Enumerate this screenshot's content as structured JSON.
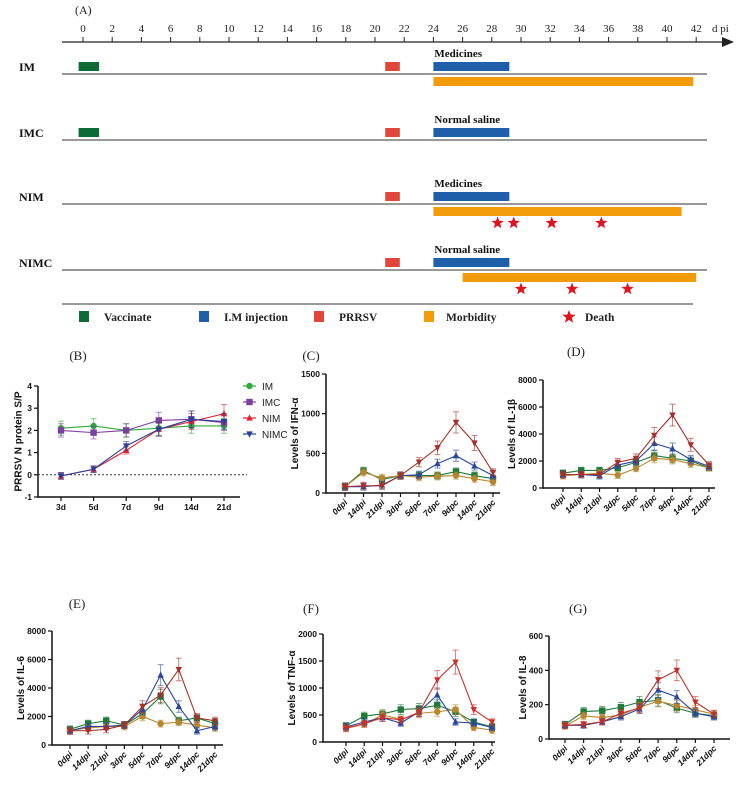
{
  "panel_a": {
    "label": "(A)",
    "axis_unit": "d pi",
    "ticks": [
      0,
      2,
      4,
      6,
      8,
      10,
      12,
      14,
      16,
      18,
      20,
      22,
      24,
      26,
      28,
      30,
      32,
      34,
      36,
      38,
      40,
      42
    ],
    "colors": {
      "vaccinate": "#0d6b35",
      "injection": "#1f5ea8",
      "prrsv": "#e2463a",
      "morbidity": "#f29c0c",
      "death": "#e0131f"
    },
    "rows": [
      {
        "name": "IM",
        "treatment": "Medicines",
        "vaccinate": [
          -0.3,
          1.1
        ],
        "prrsv": [
          20.7,
          21.7
        ],
        "injection": [
          24,
          29.2
        ],
        "morbidity": [
          24,
          41.8
        ],
        "deaths": []
      },
      {
        "name": "IMC",
        "treatment": "Normal saline",
        "vaccinate": [
          -0.3,
          1.1
        ],
        "prrsv": [
          20.7,
          21.7
        ],
        "injection": [
          24,
          29.2
        ],
        "morbidity": null,
        "deaths": []
      },
      {
        "name": "NIM",
        "treatment": "Medicines",
        "vaccinate": null,
        "prrsv": [
          20.7,
          21.7
        ],
        "injection": [
          24,
          29.2
        ],
        "morbidity": [
          24,
          41
        ],
        "deaths": [
          28.4,
          29.5,
          32.1,
          35.5
        ]
      },
      {
        "name": "NIMC",
        "treatment": "Normal saline",
        "vaccinate": null,
        "prrsv": [
          20.7,
          21.7
        ],
        "injection": [
          24,
          29.2
        ],
        "morbidity": [
          26,
          42
        ],
        "deaths": [
          30,
          33.5,
          37.3
        ]
      }
    ],
    "legend": [
      {
        "key": "vaccinate",
        "label": "Vaccinate"
      },
      {
        "key": "injection",
        "label": "I.M injection"
      },
      {
        "key": "prrsv",
        "label": "PRRSV"
      },
      {
        "key": "morbidity",
        "label": "Morbidity"
      },
      {
        "key": "death",
        "label": "Death"
      }
    ]
  },
  "chart_data": [
    {
      "id": "B",
      "panel_label": "(B)",
      "type": "line",
      "ylabel": "PRRSV N protein S/P",
      "xlabel": "",
      "categories": [
        "3d",
        "5d",
        "7d",
        "9d",
        "14d",
        "21d"
      ],
      "ylim": [
        -1,
        4
      ],
      "yticks": [
        -1,
        0,
        1,
        2,
        3,
        4
      ],
      "reference_line": 0,
      "legend": "right",
      "series": [
        {
          "name": "IM",
          "color": "#2eab3c",
          "marker": "circle",
          "values": [
            2.1,
            2.2,
            2.0,
            2.1,
            2.2,
            2.2
          ]
        },
        {
          "name": "IMC",
          "color": "#7b3fa0",
          "marker": "square",
          "values": [
            2.0,
            1.9,
            2.0,
            2.45,
            2.5,
            2.35
          ]
        },
        {
          "name": "NIM",
          "color": "#e0202a",
          "marker": "triangle-up",
          "values": [
            -0.05,
            0.25,
            1.1,
            2.05,
            2.4,
            2.75
          ]
        },
        {
          "name": "NIMC",
          "color": "#2a3f9a",
          "marker": "triangle-down",
          "values": [
            -0.05,
            0.25,
            1.3,
            2.05,
            2.5,
            2.4
          ]
        }
      ]
    },
    {
      "id": "C",
      "panel_label": "(C)",
      "type": "line",
      "ylabel": "Levels of IFN-α",
      "xlabel": "",
      "categories": [
        "0dpi",
        "14dpi",
        "21dpi",
        "3dpc",
        "5dpc",
        "7dpc",
        "9dpc",
        "14dpc",
        "21dpc"
      ],
      "ylim": [
        0,
        1500
      ],
      "yticks": [
        0,
        500,
        1000,
        1500
      ],
      "series": [
        {
          "name": "green",
          "color": "#1f7a3a",
          "marker": "square",
          "values": [
            80,
            280,
            170,
            220,
            220,
            220,
            270,
            220,
            180
          ]
        },
        {
          "name": "brown",
          "color": "#b8862f",
          "marker": "circle",
          "values": [
            80,
            260,
            190,
            220,
            200,
            210,
            220,
            180,
            140
          ]
        },
        {
          "name": "blue",
          "color": "#2a47a0",
          "marker": "triangle-up",
          "values": [
            80,
            80,
            100,
            220,
            230,
            370,
            470,
            340,
            220
          ]
        },
        {
          "name": "red",
          "color": "#a8302a",
          "marker": "triangle-down",
          "values": [
            80,
            90,
            90,
            220,
            390,
            570,
            890,
            630,
            260
          ]
        }
      ]
    },
    {
      "id": "D",
      "panel_label": "(D)",
      "type": "line",
      "ylabel": "Levels of IL-1β",
      "xlabel": "",
      "categories": [
        "0dpi",
        "14dpi",
        "21dpi",
        "3dpc",
        "5dpc",
        "7dpc",
        "9dpc",
        "14dpc",
        "21dpc"
      ],
      "ylim": [
        0,
        8000
      ],
      "yticks": [
        0,
        2000,
        4000,
        6000,
        8000
      ],
      "series": [
        {
          "name": "green",
          "color": "#1f7a3a",
          "marker": "square",
          "values": [
            1100,
            1300,
            1300,
            1500,
            1900,
            2400,
            2200,
            2000,
            1500
          ]
        },
        {
          "name": "brown",
          "color": "#b8862f",
          "marker": "circle",
          "values": [
            900,
            1000,
            1100,
            950,
            1450,
            2200,
            2100,
            1800,
            1500
          ]
        },
        {
          "name": "blue",
          "color": "#2a47a0",
          "marker": "triangle-up",
          "values": [
            1000,
            1000,
            900,
            1700,
            2000,
            3300,
            2900,
            2100,
            1600
          ]
        },
        {
          "name": "red",
          "color": "#a8302a",
          "marker": "triangle-down",
          "values": [
            1000,
            1000,
            1000,
            1900,
            2200,
            3900,
            5400,
            3200,
            1700
          ]
        }
      ]
    },
    {
      "id": "E",
      "panel_label": "(E)",
      "type": "line",
      "ylabel": "Levels of IL-6",
      "xlabel": "",
      "categories": [
        "0dpi",
        "14dpi",
        "21dpi",
        "3dpc",
        "5dpc",
        "7dpc",
        "9dpc",
        "14dpc",
        "21dpc"
      ],
      "ylim": [
        0,
        8000
      ],
      "yticks": [
        0,
        2000,
        4000,
        6000,
        8000
      ],
      "series": [
        {
          "name": "green",
          "color": "#1f7a3a",
          "marker": "square",
          "values": [
            1100,
            1500,
            1700,
            1400,
            2200,
            3400,
            1700,
            1900,
            1500
          ]
        },
        {
          "name": "brown",
          "color": "#b8862f",
          "marker": "circle",
          "values": [
            1000,
            1200,
            1300,
            1300,
            2000,
            1500,
            1600,
            1400,
            1200
          ]
        },
        {
          "name": "blue",
          "color": "#2a47a0",
          "marker": "triangle-up",
          "values": [
            1000,
            1300,
            1300,
            1400,
            2500,
            4900,
            2700,
            1000,
            1300
          ]
        },
        {
          "name": "red",
          "color": "#a8302a",
          "marker": "triangle-down",
          "values": [
            1000,
            1000,
            1100,
            1400,
            2700,
            3500,
            5300,
            1900,
            1700
          ]
        }
      ]
    },
    {
      "id": "F",
      "panel_label": "(F)",
      "type": "line",
      "ylabel": "Levels of TNF-α",
      "xlabel": "",
      "categories": [
        "0dpi",
        "14dpi",
        "21dpi",
        "3dpc",
        "5dpc",
        "7dpc",
        "9dpc",
        "14dpc",
        "21dpc"
      ],
      "ylim": [
        0,
        2000
      ],
      "yticks": [
        0,
        500,
        1000,
        1500,
        2000
      ],
      "series": [
        {
          "name": "green",
          "color": "#1f7a3a",
          "marker": "square",
          "values": [
            300,
            480,
            520,
            600,
            620,
            680,
            560,
            370,
            280
          ]
        },
        {
          "name": "brown",
          "color": "#b8862f",
          "marker": "circle",
          "values": [
            250,
            330,
            500,
            420,
            530,
            560,
            600,
            270,
            220
          ]
        },
        {
          "name": "blue",
          "color": "#2a47a0",
          "marker": "triangle-up",
          "values": [
            280,
            370,
            450,
            350,
            560,
            870,
            370,
            350,
            270
          ]
        },
        {
          "name": "red",
          "color": "#d0302a",
          "marker": "triangle-down",
          "values": [
            260,
            340,
            450,
            410,
            550,
            1150,
            1480,
            600,
            370
          ]
        }
      ]
    },
    {
      "id": "G",
      "panel_label": "(G)",
      "type": "line",
      "ylabel": "Levels of IL-8",
      "xlabel": "",
      "categories": [
        "0dpi",
        "14dpi",
        "21dpi",
        "3dpc",
        "5dpc",
        "7dpc",
        "9dpc",
        "14dpc",
        "21dpc"
      ],
      "ylim": [
        0,
        600
      ],
      "yticks": [
        0,
        200,
        400,
        600
      ],
      "series": [
        {
          "name": "green",
          "color": "#1f7a3a",
          "marker": "square",
          "values": [
            85,
            160,
            165,
            185,
            215,
            225,
            180,
            150,
            135
          ]
        },
        {
          "name": "brown",
          "color": "#b8862f",
          "marker": "circle",
          "values": [
            75,
            135,
            125,
            140,
            185,
            220,
            195,
            170,
            145
          ]
        },
        {
          "name": "blue",
          "color": "#2a47a0",
          "marker": "triangle-up",
          "values": [
            80,
            80,
            100,
            130,
            175,
            285,
            245,
            150,
            130
          ]
        },
        {
          "name": "red",
          "color": "#c0302a",
          "marker": "triangle-down",
          "values": [
            80,
            85,
            100,
            150,
            180,
            345,
            400,
            215,
            145
          ]
        }
      ]
    }
  ]
}
